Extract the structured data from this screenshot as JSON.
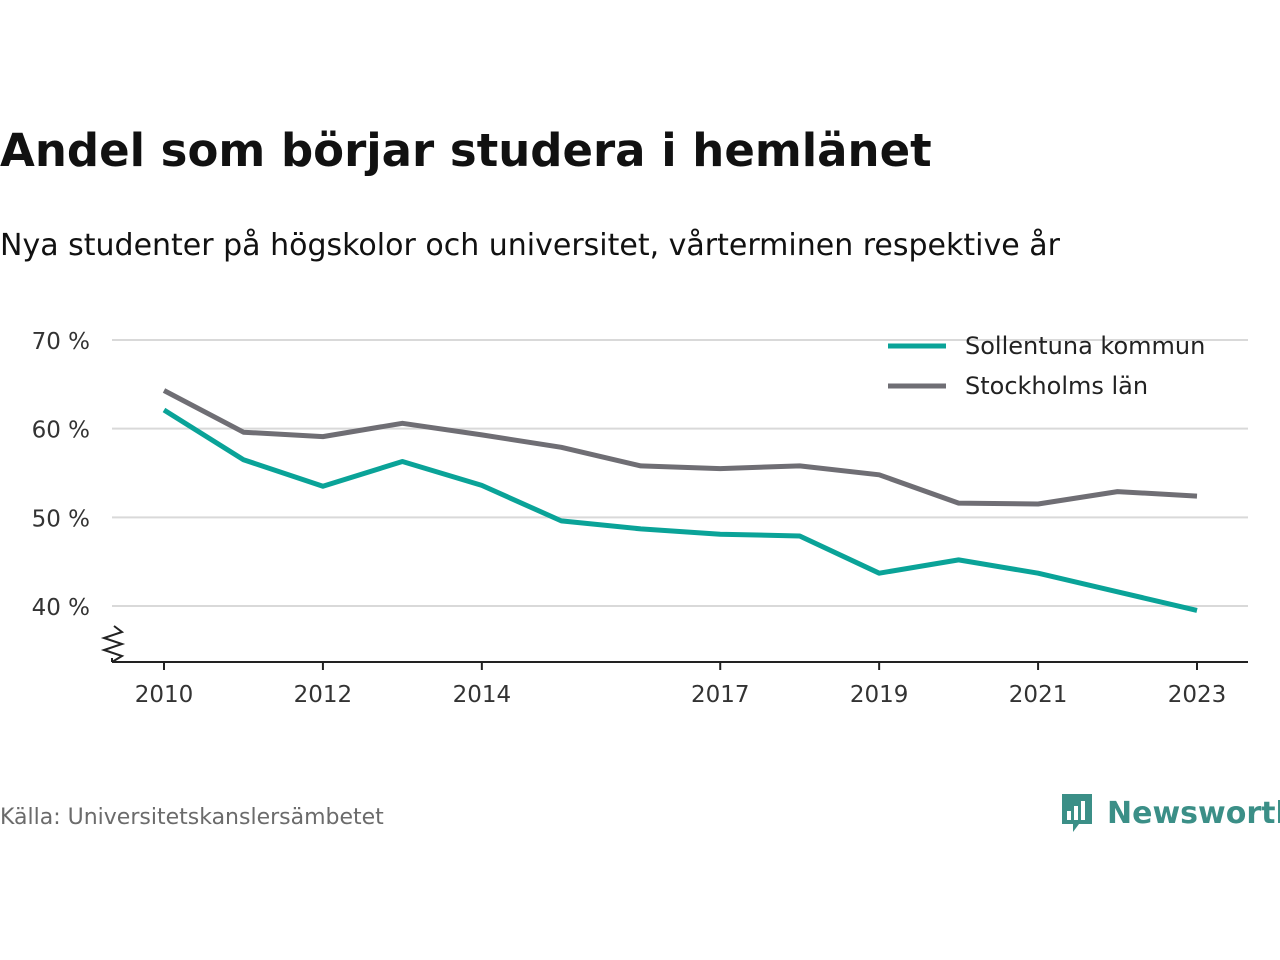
{
  "title": "Andel som börjar studera i hemlänet",
  "subtitle": "Nya studenter på högskolor och universitet, vårterminen respektive år",
  "source": "Källa: Universitetskanslersämbetet",
  "logo": {
    "text": "Newsworthy",
    "icon": "chart-bubble-icon",
    "color": "#3b8f87"
  },
  "chart_data": {
    "type": "line",
    "x": [
      2010,
      2011,
      2012,
      2013,
      2014,
      2015,
      2016,
      2017,
      2018,
      2019,
      2020,
      2021,
      2022,
      2023
    ],
    "series": [
      {
        "name": "Sollentuna kommun",
        "color": "#0aa398",
        "values": [
          62.1,
          56.5,
          53.5,
          56.3,
          53.6,
          49.6,
          48.7,
          48.1,
          47.9,
          43.7,
          45.2,
          43.7,
          41.6,
          39.5
        ]
      },
      {
        "name": "Stockholms län",
        "color": "#6f6e74",
        "values": [
          64.3,
          59.6,
          59.1,
          60.6,
          59.3,
          57.9,
          55.8,
          55.5,
          55.8,
          54.8,
          51.6,
          51.5,
          52.9,
          52.4
        ]
      }
    ],
    "x_ticks": [
      2010,
      2012,
      2014,
      2017,
      2019,
      2021,
      2023
    ],
    "x_tick_labels": [
      "2010",
      "2012",
      "2014",
      "2017",
      "2019",
      "2021",
      "2023"
    ],
    "y_ticks": [
      40,
      50,
      60,
      70
    ],
    "y_tick_labels": [
      "40 %",
      "50 %",
      "60 %",
      "70 %"
    ],
    "ylim": [
      33.7,
      70
    ],
    "xlim": [
      2010,
      2023
    ],
    "grid": true,
    "y_axis_break": true,
    "legend_position": "top-right"
  }
}
